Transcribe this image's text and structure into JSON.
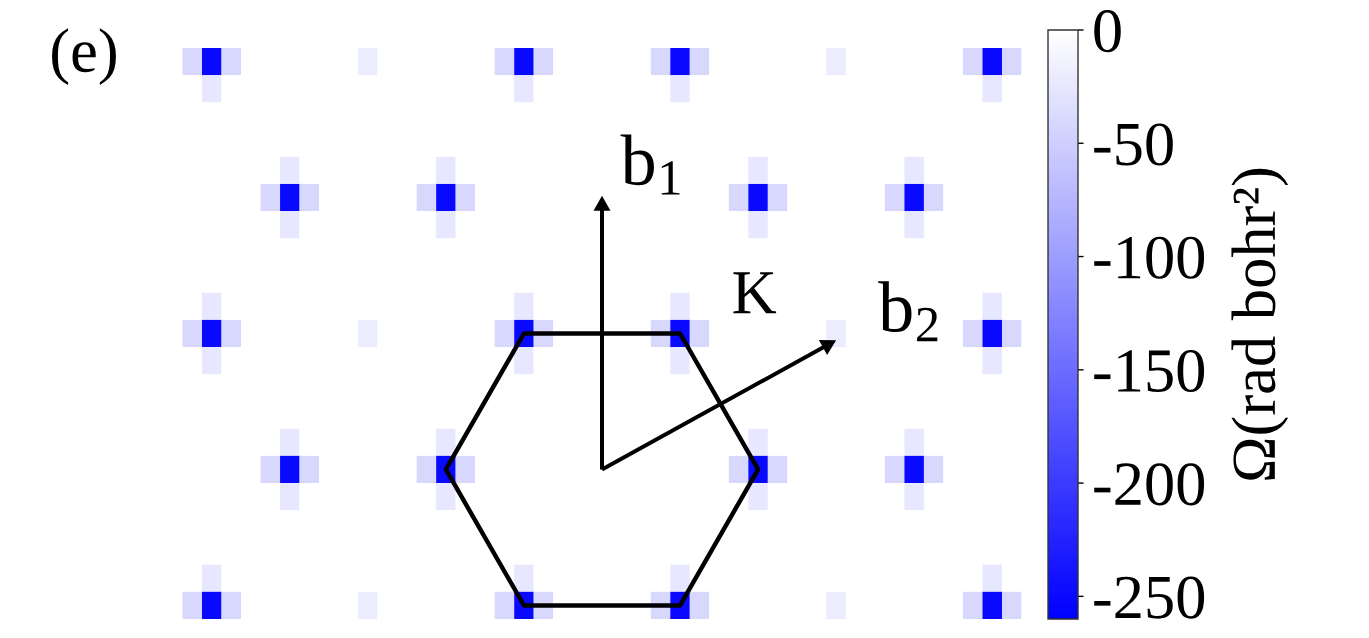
{
  "chart_data": {
    "type": "heatmap",
    "title": "(e)",
    "categories": [
      null,
      null,
      null,
      null,
      null,
      null,
      null,
      null,
      null,
      null,
      null,
      null,
      null,
      null,
      null,
      null,
      null,
      null,
      null,
      null,
      null,
      null,
      null,
      null,
      null,
      null,
      null,
      null,
      null,
      null,
      null,
      null,
      null,
      null,
      null,
      null,
      null,
      null,
      null,
      null,
      null,
      null,
      null,
      null,
      null
    ],
    "y_categories": [
      null,
      null,
      null,
      null,
      null,
      null,
      null,
      null,
      null,
      null,
      null,
      null,
      null,
      null,
      null,
      null,
      null,
      null,
      null,
      null,
      null
    ],
    "cells": [
      [
        0,
        -40,
        -250,
        -40,
        0,
        0,
        0,
        0,
        0,
        0,
        -20,
        0,
        0,
        0,
        0,
        0,
        0,
        -40,
        -250,
        -40,
        0,
        0,
        0,
        0,
        0,
        -40,
        -250,
        -40,
        0,
        0,
        0,
        0,
        0,
        0,
        -20,
        0,
        0,
        0,
        0,
        0,
        0,
        -40,
        -250,
        -40,
        0
      ],
      [
        0,
        0,
        -25,
        0,
        0,
        0,
        0,
        0,
        0,
        0,
        0,
        0,
        0,
        0,
        0,
        0,
        0,
        0,
        -25,
        0,
        0,
        0,
        0,
        0,
        0,
        0,
        -25,
        0,
        0,
        0,
        0,
        0,
        0,
        0,
        0,
        0,
        0,
        0,
        0,
        0,
        0,
        0,
        -25,
        0,
        0
      ],
      [
        0,
        0,
        0,
        0,
        0,
        0,
        0,
        0,
        0,
        0,
        0,
        0,
        0,
        0,
        0,
        0,
        0,
        0,
        0,
        0,
        0,
        0,
        0,
        0,
        0,
        0,
        0,
        0,
        0,
        0,
        0,
        0,
        0,
        0,
        0,
        0,
        0,
        0,
        0,
        0,
        0,
        0,
        0,
        0,
        0
      ],
      [
        0,
        0,
        0,
        0,
        0,
        0,
        0,
        0,
        0,
        0,
        0,
        0,
        0,
        0,
        0,
        0,
        0,
        0,
        0,
        0,
        0,
        0,
        0,
        0,
        0,
        0,
        0,
        0,
        0,
        0,
        0,
        0,
        0,
        0,
        0,
        0,
        0,
        0,
        0,
        0,
        0,
        0,
        0,
        0,
        0
      ],
      [
        0,
        0,
        0,
        0,
        0,
        0,
        -25,
        0,
        0,
        0,
        0,
        0,
        0,
        0,
        -25,
        0,
        0,
        0,
        0,
        0,
        0,
        0,
        0,
        0,
        0,
        0,
        0,
        0,
        0,
        0,
        -25,
        0,
        0,
        0,
        0,
        0,
        0,
        0,
        -25,
        0,
        0,
        0,
        0,
        0,
        0
      ],
      [
        0,
        0,
        0,
        0,
        0,
        -40,
        -250,
        -40,
        0,
        0,
        0,
        0,
        0,
        -40,
        -250,
        -40,
        0,
        0,
        0,
        0,
        0,
        0,
        0,
        0,
        0,
        0,
        0,
        0,
        0,
        -40,
        -250,
        -40,
        0,
        0,
        0,
        0,
        0,
        -40,
        -250,
        -40,
        0,
        0,
        0,
        0,
        0
      ],
      [
        0,
        0,
        0,
        0,
        0,
        0,
        -25,
        0,
        0,
        0,
        0,
        0,
        0,
        0,
        -25,
        0,
        0,
        0,
        0,
        0,
        0,
        0,
        0,
        0,
        0,
        0,
        0,
        0,
        0,
        0,
        -25,
        0,
        0,
        0,
        0,
        0,
        0,
        0,
        -25,
        0,
        0,
        0,
        0,
        0,
        0
      ],
      [
        0,
        0,
        0,
        0,
        0,
        0,
        0,
        0,
        0,
        0,
        0,
        0,
        0,
        0,
        0,
        0,
        0,
        0,
        0,
        0,
        0,
        0,
        0,
        0,
        0,
        0,
        0,
        0,
        0,
        0,
        0,
        0,
        0,
        0,
        0,
        0,
        0,
        0,
        0,
        0,
        0,
        0,
        0,
        0,
        0
      ],
      [
        0,
        0,
        0,
        0,
        0,
        0,
        0,
        0,
        0,
        0,
        0,
        0,
        0,
        0,
        0,
        0,
        0,
        0,
        0,
        0,
        0,
        0,
        0,
        0,
        0,
        0,
        0,
        0,
        0,
        0,
        0,
        0,
        0,
        0,
        0,
        0,
        0,
        0,
        0,
        0,
        0,
        0,
        0,
        0,
        0
      ],
      [
        0,
        0,
        -25,
        0,
        0,
        0,
        0,
        0,
        0,
        0,
        0,
        0,
        0,
        0,
        0,
        0,
        0,
        0,
        -25,
        0,
        0,
        0,
        0,
        0,
        0,
        0,
        -25,
        0,
        0,
        0,
        0,
        0,
        0,
        0,
        0,
        0,
        0,
        0,
        0,
        0,
        0,
        0,
        -25,
        0,
        0
      ],
      [
        0,
        -40,
        -250,
        -40,
        0,
        0,
        0,
        0,
        0,
        0,
        -20,
        0,
        0,
        0,
        0,
        0,
        0,
        -40,
        -250,
        -40,
        0,
        0,
        0,
        0,
        0,
        -40,
        -250,
        -40,
        0,
        0,
        0,
        0,
        0,
        0,
        -20,
        0,
        0,
        0,
        0,
        0,
        0,
        -40,
        -250,
        -40,
        0
      ],
      [
        0,
        0,
        -25,
        0,
        0,
        0,
        0,
        0,
        0,
        0,
        0,
        0,
        0,
        0,
        0,
        0,
        0,
        0,
        -25,
        0,
        0,
        0,
        0,
        0,
        0,
        0,
        -25,
        0,
        0,
        0,
        0,
        0,
        0,
        0,
        0,
        0,
        0,
        0,
        0,
        0,
        0,
        0,
        -25,
        0,
        0
      ],
      [
        0,
        0,
        0,
        0,
        0,
        0,
        0,
        0,
        0,
        0,
        0,
        0,
        0,
        0,
        0,
        0,
        0,
        0,
        0,
        0,
        0,
        0,
        0,
        0,
        0,
        0,
        0,
        0,
        0,
        0,
        0,
        0,
        0,
        0,
        0,
        0,
        0,
        0,
        0,
        0,
        0,
        0,
        0,
        0,
        0
      ],
      [
        0,
        0,
        0,
        0,
        0,
        0,
        0,
        0,
        0,
        0,
        0,
        0,
        0,
        0,
        0,
        0,
        0,
        0,
        0,
        0,
        0,
        0,
        0,
        0,
        0,
        0,
        0,
        0,
        0,
        0,
        0,
        0,
        0,
        0,
        0,
        0,
        0,
        0,
        0,
        0,
        0,
        0,
        0,
        0,
        0
      ],
      [
        0,
        0,
        0,
        0,
        0,
        0,
        -25,
        0,
        0,
        0,
        0,
        0,
        0,
        0,
        -25,
        0,
        0,
        0,
        0,
        0,
        0,
        0,
        0,
        0,
        0,
        0,
        0,
        0,
        0,
        0,
        -25,
        0,
        0,
        0,
        0,
        0,
        0,
        0,
        -25,
        0,
        0,
        0,
        0,
        0,
        0
      ],
      [
        0,
        0,
        0,
        0,
        0,
        -40,
        -250,
        -40,
        0,
        0,
        0,
        0,
        0,
        -40,
        -250,
        -40,
        0,
        0,
        0,
        0,
        0,
        0,
        0,
        0,
        0,
        0,
        0,
        0,
        0,
        -40,
        -250,
        -40,
        0,
        0,
        0,
        0,
        0,
        -40,
        -250,
        -40,
        0,
        0,
        0,
        0,
        0
      ],
      [
        0,
        0,
        0,
        0,
        0,
        0,
        -25,
        0,
        0,
        0,
        0,
        0,
        0,
        0,
        -25,
        0,
        0,
        0,
        0,
        0,
        0,
        0,
        0,
        0,
        0,
        0,
        0,
        0,
        0,
        0,
        -25,
        0,
        0,
        0,
        0,
        0,
        0,
        0,
        -25,
        0,
        0,
        0,
        0,
        0,
        0
      ],
      [
        0,
        0,
        0,
        0,
        0,
        0,
        0,
        0,
        0,
        0,
        0,
        0,
        0,
        0,
        0,
        0,
        0,
        0,
        0,
        0,
        0,
        0,
        0,
        0,
        0,
        0,
        0,
        0,
        0,
        0,
        0,
        0,
        0,
        0,
        0,
        0,
        0,
        0,
        0,
        0,
        0,
        0,
        0,
        0,
        0
      ],
      [
        0,
        0,
        0,
        0,
        0,
        0,
        0,
        0,
        0,
        0,
        0,
        0,
        0,
        0,
        0,
        0,
        0,
        0,
        0,
        0,
        0,
        0,
        0,
        0,
        0,
        0,
        0,
        0,
        0,
        0,
        0,
        0,
        0,
        0,
        0,
        0,
        0,
        0,
        0,
        0,
        0,
        0,
        0,
        0,
        0
      ],
      [
        0,
        0,
        -25,
        0,
        0,
        0,
        0,
        0,
        0,
        0,
        0,
        0,
        0,
        0,
        0,
        0,
        0,
        0,
        -25,
        0,
        0,
        0,
        0,
        0,
        0,
        0,
        -25,
        0,
        0,
        0,
        0,
        0,
        0,
        0,
        0,
        0,
        0,
        0,
        0,
        0,
        0,
        0,
        -25,
        0,
        0
      ],
      [
        0,
        -40,
        -250,
        -40,
        0,
        0,
        0,
        0,
        0,
        0,
        -20,
        0,
        0,
        0,
        0,
        0,
        0,
        -40,
        -250,
        -40,
        0,
        0,
        0,
        0,
        0,
        -40,
        -250,
        -40,
        0,
        0,
        0,
        0,
        0,
        0,
        -20,
        0,
        0,
        0,
        0,
        0,
        0,
        -40,
        -250,
        -40,
        0
      ]
    ],
    "clim": [
      -260,
      0
    ],
    "cticks": [
      -250,
      -200,
      -150,
      -100,
      -50,
      0
    ],
    "clabel": "Ω(rad bohr²)",
    "annotations": [
      "b$_{1}$",
      "b$_{2}$",
      "K"
    ],
    "tick_labels": false
  }
}
